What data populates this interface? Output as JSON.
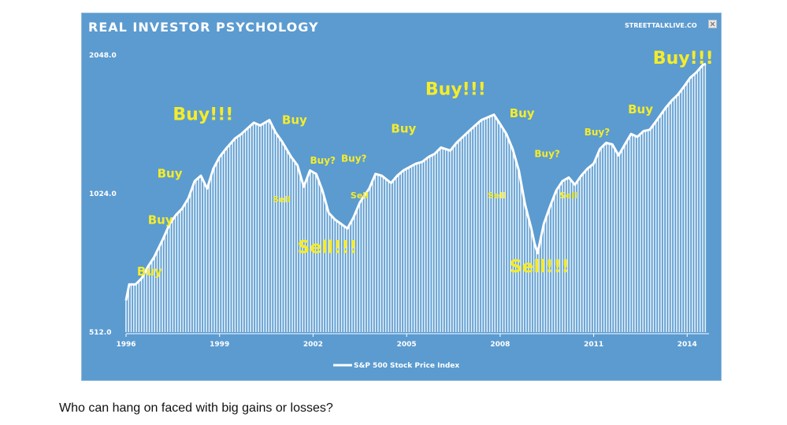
{
  "header": {
    "title": "REAL INVESTOR PSYCHOLOGY",
    "source": "STREETTALKLIVE.CO"
  },
  "caption": "Who can hang on faced with big gains or losses?",
  "colors": {
    "panel_bg": "#5b9bd0",
    "line": "#ffffff",
    "annotation": "#f5ec2a"
  },
  "chart_data": {
    "type": "line",
    "title": "REAL INVESTOR PSYCHOLOGY",
    "y_scale": "log",
    "ylim": [
      512,
      2048
    ],
    "yticks": [
      "2048.0",
      "1024.0",
      "512.0"
    ],
    "ytick_values": [
      2048,
      1024,
      512
    ],
    "xticks": [
      "1996",
      "1999",
      "2002",
      "2005",
      "2008",
      "2011",
      "2014"
    ],
    "xtick_values": [
      1996,
      1999,
      2002,
      2005,
      2008,
      2011,
      2014
    ],
    "xlim": [
      1996,
      2014.7
    ],
    "grid": false,
    "legend": "bottom-center",
    "series": [
      {
        "name": "S&P 500 Stock Price Index",
        "x": [
          1996.0,
          1996.1,
          1996.3,
          1996.5,
          1996.7,
          1996.9,
          1997.2,
          1997.4,
          1997.6,
          1997.8,
          1998.0,
          1998.2,
          1998.4,
          1998.6,
          1998.8,
          1999.0,
          1999.2,
          1999.5,
          1999.7,
          1999.9,
          2000.1,
          2000.3,
          2000.6,
          2000.8,
          2001.0,
          2001.3,
          2001.5,
          2001.7,
          2001.9,
          2002.1,
          2002.3,
          2002.5,
          2002.7,
          2002.9,
          2003.1,
          2003.3,
          2003.5,
          2003.8,
          2004.0,
          2004.2,
          2004.5,
          2004.7,
          2004.9,
          2005.1,
          2005.3,
          2005.5,
          2005.7,
          2005.9,
          2006.1,
          2006.4,
          2006.6,
          2006.8,
          2007.0,
          2007.2,
          2007.4,
          2007.6,
          2007.8,
          2008.0,
          2008.2,
          2008.4,
          2008.6,
          2008.8,
          2009.0,
          2009.1,
          2009.2,
          2009.4,
          2009.6,
          2009.8,
          2010.0,
          2010.2,
          2010.4,
          2010.6,
          2010.8,
          2011.0,
          2011.2,
          2011.4,
          2011.6,
          2011.8,
          2012.0,
          2012.2,
          2012.4,
          2012.6,
          2012.8,
          2013.0,
          2013.3,
          2013.5,
          2013.7,
          2013.9,
          2014.1,
          2014.3,
          2014.5,
          2014.6
        ],
        "values": [
          600,
          650,
          650,
          670,
          710,
          745,
          820,
          880,
          920,
          950,
          1000,
          1090,
          1120,
          1050,
          1160,
          1230,
          1280,
          1350,
          1380,
          1420,
          1460,
          1440,
          1480,
          1390,
          1330,
          1230,
          1180,
          1060,
          1150,
          1130,
          1040,
          930,
          900,
          880,
          860,
          910,
          980,
          1050,
          1130,
          1120,
          1080,
          1120,
          1150,
          1170,
          1190,
          1200,
          1230,
          1250,
          1290,
          1270,
          1320,
          1360,
          1400,
          1440,
          1480,
          1500,
          1520,
          1450,
          1380,
          1280,
          1150,
          970,
          860,
          800,
          760,
          880,
          960,
          1040,
          1090,
          1110,
          1070,
          1120,
          1160,
          1190,
          1280,
          1320,
          1310,
          1240,
          1310,
          1380,
          1360,
          1400,
          1410,
          1470,
          1570,
          1630,
          1680,
          1750,
          1830,
          1880,
          1950,
          1960
        ]
      }
    ],
    "annotations": [
      {
        "text": "Buy",
        "x": 1996.35,
        "y": 680
      },
      {
        "text": "Buy",
        "x": 1996.7,
        "y": 880
      },
      {
        "text": "Buy",
        "x": 1997.0,
        "y": 1110
      },
      {
        "text": "Buy!!!",
        "x": 1997.5,
        "y": 1480
      },
      {
        "text": "Buy",
        "x": 2001.0,
        "y": 1450
      },
      {
        "text": "Sell",
        "x": 2000.7,
        "y": 980
      },
      {
        "text": "Buy?",
        "x": 2001.9,
        "y": 1190
      },
      {
        "text": "Buy?",
        "x": 2002.9,
        "y": 1200
      },
      {
        "text": "Sell!!!",
        "x": 2001.5,
        "y": 760
      },
      {
        "text": "Sell",
        "x": 2003.2,
        "y": 1000
      },
      {
        "text": "Buy",
        "x": 2004.5,
        "y": 1390
      },
      {
        "text": "Buy!!!",
        "x": 2005.6,
        "y": 1680
      },
      {
        "text": "Buy",
        "x": 2008.3,
        "y": 1500
      },
      {
        "text": "Sell",
        "x": 2007.6,
        "y": 1000
      },
      {
        "text": "Buy?",
        "x": 2009.1,
        "y": 1230
      },
      {
        "text": "Sell!!!",
        "x": 2008.3,
        "y": 690
      },
      {
        "text": "Sell",
        "x": 2009.9,
        "y": 1000
      },
      {
        "text": "Buy?",
        "x": 2010.7,
        "y": 1370
      },
      {
        "text": "Buy",
        "x": 2012.1,
        "y": 1530
      },
      {
        "text": "Buy!!!",
        "x": 2012.9,
        "y": 1960
      }
    ]
  }
}
